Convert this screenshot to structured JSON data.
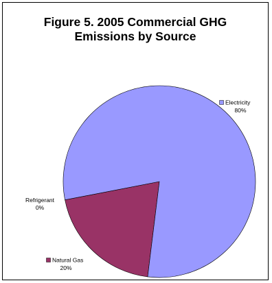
{
  "chart_data": {
    "type": "pie",
    "title": [
      "Figure 5. 2005 Commercial GHG",
      "Emissions by Source"
    ],
    "slices": [
      {
        "label": "Electricity",
        "pct_label": "80%",
        "value": 80,
        "color": "#9999ff"
      },
      {
        "label": "Natural Gas",
        "pct_label": "20%",
        "value": 20,
        "color": "#993366"
      },
      {
        "label": "Refrigerant",
        "pct_label": "0%",
        "value": 0,
        "color": "#ffffcc"
      }
    ],
    "legend": "none"
  }
}
